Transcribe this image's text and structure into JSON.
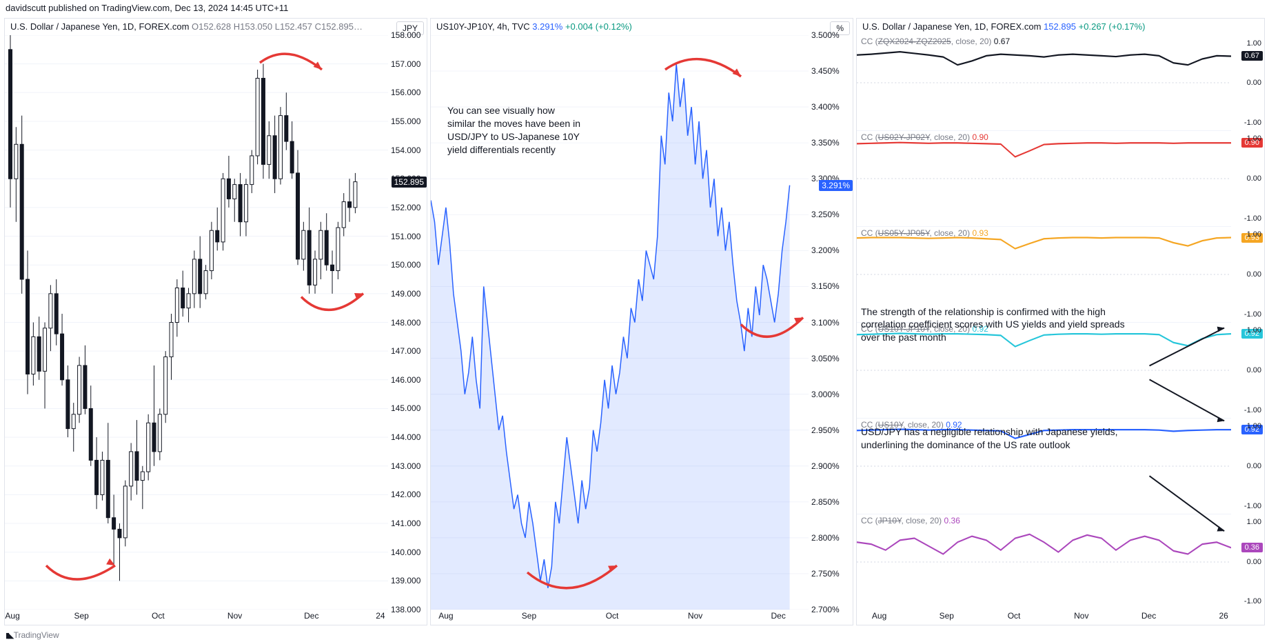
{
  "header": "davidscutt published on TradingView.com, Dec 13, 2024 14:45 UTC+11",
  "footer": "TradingView",
  "panel1": {
    "title_sym": "U.S. Dollar / Japanese Yen, 1D, FOREX.com",
    "ohlc": "O152.628 H153.050 L152.457 C152.895…",
    "unit": "JPY",
    "ylim": [
      138,
      158
    ],
    "ytick_step": 1,
    "xticks": [
      "Aug",
      "Sep",
      "Oct",
      "Nov",
      "Dec",
      "24"
    ],
    "xtick_pos": [
      0.02,
      0.2,
      0.4,
      0.6,
      0.8,
      0.98
    ],
    "price_tag": {
      "value": "152.895",
      "color": "#131722",
      "y": 152.895
    },
    "colors": {
      "up": "#131722",
      "down": "#131722",
      "wick": "#131722",
      "bg": "#ffffff",
      "grid": "#f0f3fa"
    },
    "candles": [
      {
        "x": 0.0,
        "o": 157.5,
        "h": 158.0,
        "l": 152.0,
        "c": 153.0
      },
      {
        "x": 0.015,
        "o": 153.0,
        "h": 154.8,
        "l": 151.5,
        "c": 154.2
      },
      {
        "x": 0.03,
        "o": 154.2,
        "h": 155.2,
        "l": 149.0,
        "c": 149.5
      },
      {
        "x": 0.045,
        "o": 149.5,
        "h": 150.5,
        "l": 145.5,
        "c": 146.2
      },
      {
        "x": 0.06,
        "o": 146.2,
        "h": 148.0,
        "l": 145.8,
        "c": 147.5
      },
      {
        "x": 0.075,
        "o": 147.5,
        "h": 148.2,
        "l": 146.0,
        "c": 146.3
      },
      {
        "x": 0.09,
        "o": 146.3,
        "h": 148.0,
        "l": 145.0,
        "c": 147.8
      },
      {
        "x": 0.105,
        "o": 147.8,
        "h": 149.3,
        "l": 147.0,
        "c": 149.0
      },
      {
        "x": 0.12,
        "o": 149.0,
        "h": 149.5,
        "l": 147.2,
        "c": 147.6
      },
      {
        "x": 0.135,
        "o": 147.6,
        "h": 148.3,
        "l": 145.8,
        "c": 146.0
      },
      {
        "x": 0.15,
        "o": 146.0,
        "h": 146.5,
        "l": 144.0,
        "c": 144.3
      },
      {
        "x": 0.165,
        "o": 144.3,
        "h": 145.2,
        "l": 143.5,
        "c": 144.8
      },
      {
        "x": 0.18,
        "o": 144.8,
        "h": 146.8,
        "l": 144.5,
        "c": 146.5
      },
      {
        "x": 0.195,
        "o": 146.5,
        "h": 147.2,
        "l": 144.8,
        "c": 145.0
      },
      {
        "x": 0.21,
        "o": 145.0,
        "h": 145.8,
        "l": 143.0,
        "c": 143.2
      },
      {
        "x": 0.225,
        "o": 143.2,
        "h": 144.0,
        "l": 141.5,
        "c": 142.0
      },
      {
        "x": 0.24,
        "o": 142.0,
        "h": 143.5,
        "l": 141.8,
        "c": 143.2
      },
      {
        "x": 0.255,
        "o": 143.2,
        "h": 144.5,
        "l": 141.0,
        "c": 141.2
      },
      {
        "x": 0.27,
        "o": 141.2,
        "h": 142.0,
        "l": 139.5,
        "c": 140.8
      },
      {
        "x": 0.285,
        "o": 140.8,
        "h": 141.0,
        "l": 139.0,
        "c": 140.5
      },
      {
        "x": 0.3,
        "o": 140.5,
        "h": 142.5,
        "l": 140.2,
        "c": 142.3
      },
      {
        "x": 0.315,
        "o": 142.3,
        "h": 143.8,
        "l": 141.8,
        "c": 143.5
      },
      {
        "x": 0.33,
        "o": 143.5,
        "h": 144.6,
        "l": 142.0,
        "c": 142.5
      },
      {
        "x": 0.345,
        "o": 142.5,
        "h": 143.0,
        "l": 141.5,
        "c": 142.8
      },
      {
        "x": 0.36,
        "o": 142.8,
        "h": 144.8,
        "l": 142.5,
        "c": 144.5
      },
      {
        "x": 0.375,
        "o": 144.5,
        "h": 146.5,
        "l": 143.0,
        "c": 143.5
      },
      {
        "x": 0.39,
        "o": 143.5,
        "h": 145.0,
        "l": 143.2,
        "c": 144.8
      },
      {
        "x": 0.405,
        "o": 144.8,
        "h": 147.0,
        "l": 144.5,
        "c": 146.8
      },
      {
        "x": 0.42,
        "o": 146.8,
        "h": 148.3,
        "l": 146.0,
        "c": 148.0
      },
      {
        "x": 0.435,
        "o": 148.0,
        "h": 149.5,
        "l": 147.5,
        "c": 149.2
      },
      {
        "x": 0.45,
        "o": 149.2,
        "h": 149.8,
        "l": 148.2,
        "c": 148.5
      },
      {
        "x": 0.465,
        "o": 148.5,
        "h": 149.2,
        "l": 148.0,
        "c": 149.0
      },
      {
        "x": 0.48,
        "o": 149.0,
        "h": 150.5,
        "l": 148.5,
        "c": 150.2
      },
      {
        "x": 0.495,
        "o": 150.2,
        "h": 151.0,
        "l": 148.5,
        "c": 149.0
      },
      {
        "x": 0.51,
        "o": 149.0,
        "h": 150.0,
        "l": 148.8,
        "c": 149.8
      },
      {
        "x": 0.525,
        "o": 149.8,
        "h": 151.5,
        "l": 149.5,
        "c": 151.2
      },
      {
        "x": 0.54,
        "o": 151.2,
        "h": 152.0,
        "l": 150.5,
        "c": 150.8
      },
      {
        "x": 0.555,
        "o": 150.8,
        "h": 153.2,
        "l": 150.5,
        "c": 153.0
      },
      {
        "x": 0.57,
        "o": 153.0,
        "h": 153.8,
        "l": 152.0,
        "c": 152.3
      },
      {
        "x": 0.585,
        "o": 152.3,
        "h": 153.0,
        "l": 151.5,
        "c": 152.8
      },
      {
        "x": 0.6,
        "o": 152.8,
        "h": 153.2,
        "l": 151.0,
        "c": 151.5
      },
      {
        "x": 0.615,
        "o": 151.5,
        "h": 153.0,
        "l": 151.0,
        "c": 152.8
      },
      {
        "x": 0.63,
        "o": 152.8,
        "h": 154.0,
        "l": 152.5,
        "c": 153.8
      },
      {
        "x": 0.645,
        "o": 153.8,
        "h": 156.8,
        "l": 153.5,
        "c": 156.5
      },
      {
        "x": 0.66,
        "o": 156.5,
        "h": 157.0,
        "l": 153.0,
        "c": 153.5
      },
      {
        "x": 0.675,
        "o": 153.5,
        "h": 155.0,
        "l": 153.0,
        "c": 154.5
      },
      {
        "x": 0.69,
        "o": 154.5,
        "h": 155.2,
        "l": 152.5,
        "c": 153.0
      },
      {
        "x": 0.705,
        "o": 153.0,
        "h": 155.5,
        "l": 152.8,
        "c": 155.2
      },
      {
        "x": 0.72,
        "o": 155.2,
        "h": 156.0,
        "l": 154.0,
        "c": 154.3
      },
      {
        "x": 0.735,
        "o": 154.3,
        "h": 155.0,
        "l": 153.0,
        "c": 153.2
      },
      {
        "x": 0.75,
        "o": 153.2,
        "h": 154.0,
        "l": 150.0,
        "c": 150.2
      },
      {
        "x": 0.765,
        "o": 150.2,
        "h": 151.5,
        "l": 149.8,
        "c": 151.2
      },
      {
        "x": 0.78,
        "o": 151.2,
        "h": 152.0,
        "l": 149.0,
        "c": 149.3
      },
      {
        "x": 0.795,
        "o": 149.3,
        "h": 150.5,
        "l": 149.0,
        "c": 150.2
      },
      {
        "x": 0.81,
        "o": 150.2,
        "h": 151.5,
        "l": 149.5,
        "c": 151.2
      },
      {
        "x": 0.825,
        "o": 151.2,
        "h": 151.8,
        "l": 149.8,
        "c": 150.0
      },
      {
        "x": 0.84,
        "o": 150.0,
        "h": 150.5,
        "l": 149.0,
        "c": 149.8
      },
      {
        "x": 0.855,
        "o": 149.8,
        "h": 151.5,
        "l": 149.5,
        "c": 151.3
      },
      {
        "x": 0.87,
        "o": 151.3,
        "h": 152.5,
        "l": 151.0,
        "c": 152.2
      },
      {
        "x": 0.885,
        "o": 152.2,
        "h": 153.0,
        "l": 151.5,
        "c": 152.0
      },
      {
        "x": 0.9,
        "o": 152.0,
        "h": 153.2,
        "l": 151.8,
        "c": 152.895
      }
    ]
  },
  "panel2": {
    "title_sym": "US10Y-JP10Y, 4h, TVC",
    "quote": "3.291%",
    "change": "+0.004 (+0.12%)",
    "unit": "%",
    "annotation": "You can see visually how similar the moves have been in USD/JPY to US-Japanese 10Y yield differentials recently",
    "ylim": [
      2.7,
      3.5
    ],
    "ytick_step": 0.05,
    "xticks": [
      "Aug",
      "Sep",
      "Oct",
      "Nov",
      "Dec"
    ],
    "xtick_pos": [
      0.04,
      0.26,
      0.48,
      0.7,
      0.92
    ],
    "price_tag": {
      "value": "3.291%",
      "color": "#2962ff",
      "y": 3.291
    },
    "line_color": "#2962ff",
    "fill_color": "#2962ff22",
    "series": [
      [
        0.0,
        3.27
      ],
      [
        0.01,
        3.24
      ],
      [
        0.02,
        3.18
      ],
      [
        0.03,
        3.22
      ],
      [
        0.04,
        3.26
      ],
      [
        0.05,
        3.21
      ],
      [
        0.06,
        3.14
      ],
      [
        0.07,
        3.1
      ],
      [
        0.08,
        3.06
      ],
      [
        0.09,
        3.0
      ],
      [
        0.1,
        3.03
      ],
      [
        0.11,
        3.08
      ],
      [
        0.12,
        3.02
      ],
      [
        0.13,
        2.98
      ],
      [
        0.14,
        3.15
      ],
      [
        0.15,
        3.1
      ],
      [
        0.16,
        3.05
      ],
      [
        0.17,
        3.0
      ],
      [
        0.18,
        2.95
      ],
      [
        0.19,
        2.97
      ],
      [
        0.2,
        2.92
      ],
      [
        0.21,
        2.88
      ],
      [
        0.22,
        2.84
      ],
      [
        0.23,
        2.86
      ],
      [
        0.24,
        2.82
      ],
      [
        0.25,
        2.8
      ],
      [
        0.26,
        2.85
      ],
      [
        0.27,
        2.82
      ],
      [
        0.28,
        2.78
      ],
      [
        0.29,
        2.74
      ],
      [
        0.3,
        2.77
      ],
      [
        0.31,
        2.73
      ],
      [
        0.32,
        2.76
      ],
      [
        0.33,
        2.85
      ],
      [
        0.34,
        2.82
      ],
      [
        0.35,
        2.88
      ],
      [
        0.36,
        2.94
      ],
      [
        0.37,
        2.9
      ],
      [
        0.38,
        2.86
      ],
      [
        0.39,
        2.82
      ],
      [
        0.4,
        2.88
      ],
      [
        0.41,
        2.84
      ],
      [
        0.42,
        2.87
      ],
      [
        0.43,
        2.95
      ],
      [
        0.44,
        2.92
      ],
      [
        0.45,
        2.96
      ],
      [
        0.46,
        3.02
      ],
      [
        0.47,
        2.98
      ],
      [
        0.48,
        3.04
      ],
      [
        0.49,
        3.0
      ],
      [
        0.5,
        3.03
      ],
      [
        0.51,
        3.08
      ],
      [
        0.52,
        3.05
      ],
      [
        0.53,
        3.12
      ],
      [
        0.54,
        3.1
      ],
      [
        0.55,
        3.16
      ],
      [
        0.56,
        3.13
      ],
      [
        0.57,
        3.2
      ],
      [
        0.58,
        3.18
      ],
      [
        0.59,
        3.16
      ],
      [
        0.6,
        3.22
      ],
      [
        0.61,
        3.36
      ],
      [
        0.62,
        3.32
      ],
      [
        0.63,
        3.42
      ],
      [
        0.64,
        3.38
      ],
      [
        0.65,
        3.46
      ],
      [
        0.66,
        3.4
      ],
      [
        0.67,
        3.44
      ],
      [
        0.68,
        3.36
      ],
      [
        0.69,
        3.4
      ],
      [
        0.7,
        3.32
      ],
      [
        0.71,
        3.38
      ],
      [
        0.72,
        3.3
      ],
      [
        0.73,
        3.34
      ],
      [
        0.74,
        3.26
      ],
      [
        0.75,
        3.3
      ],
      [
        0.76,
        3.22
      ],
      [
        0.77,
        3.26
      ],
      [
        0.78,
        3.2
      ],
      [
        0.79,
        3.24
      ],
      [
        0.8,
        3.18
      ],
      [
        0.81,
        3.13
      ],
      [
        0.82,
        3.1
      ],
      [
        0.83,
        3.06
      ],
      [
        0.84,
        3.12
      ],
      [
        0.85,
        3.08
      ],
      [
        0.86,
        3.15
      ],
      [
        0.87,
        3.11
      ],
      [
        0.88,
        3.18
      ],
      [
        0.89,
        3.16
      ],
      [
        0.9,
        3.13
      ],
      [
        0.91,
        3.1
      ],
      [
        0.92,
        3.14
      ],
      [
        0.93,
        3.2
      ],
      [
        0.94,
        3.24
      ],
      [
        0.95,
        3.291
      ]
    ]
  },
  "panel3": {
    "title_sym": "U.S. Dollar / Japanese Yen, 1D, FOREX.com",
    "quote": "152.895",
    "change": "+0.267 (+0.17%)",
    "xticks": [
      "Aug",
      "Sep",
      "Oct",
      "Nov",
      "Dec",
      "26"
    ],
    "xtick_pos": [
      0.06,
      0.24,
      0.42,
      0.6,
      0.78,
      0.98
    ],
    "annot1": "The strength of the relationship is confirmed with the high correlation coefficient scores with US yields and yield spreads over the past month",
    "annot2": "USD/JPY has a negligible relationship with Japanese yields, underlining the dominance of the US rate outlook",
    "rows": [
      {
        "label": "CC (ZQX2024-ZQZ2025, close, 20)",
        "val": "0.67",
        "color": "#131722",
        "series": [
          0.7,
          0.72,
          0.75,
          0.78,
          0.74,
          0.7,
          0.65,
          0.45,
          0.55,
          0.68,
          0.72,
          0.7,
          0.68,
          0.65,
          0.7,
          0.72,
          0.7,
          0.68,
          0.66,
          0.7,
          0.72,
          0.68,
          0.5,
          0.45,
          0.6,
          0.68,
          0.67
        ]
      },
      {
        "label": "CC (US02Y-JP02Y, close, 20)",
        "val": "0.90",
        "color": "#e53935",
        "series": [
          0.88,
          0.89,
          0.9,
          0.91,
          0.9,
          0.89,
          0.9,
          0.9,
          0.89,
          0.88,
          0.87,
          0.55,
          0.7,
          0.86,
          0.88,
          0.89,
          0.9,
          0.9,
          0.89,
          0.9,
          0.9,
          0.9,
          0.89,
          0.9,
          0.9,
          0.9,
          0.9
        ]
      },
      {
        "label": "CC (US05Y-JP05Y, close, 20)",
        "val": "0.93",
        "color": "#f5a623",
        "series": [
          0.92,
          0.93,
          0.93,
          0.93,
          0.92,
          0.91,
          0.92,
          0.93,
          0.92,
          0.9,
          0.88,
          0.65,
          0.78,
          0.9,
          0.92,
          0.93,
          0.93,
          0.92,
          0.93,
          0.93,
          0.93,
          0.92,
          0.8,
          0.72,
          0.85,
          0.92,
          0.93
        ]
      },
      {
        "label": "CC (US10Y-JP10Y, close, 20)",
        "val": "0.92",
        "color": "#26c6da",
        "series": [
          0.9,
          0.91,
          0.92,
          0.93,
          0.92,
          0.91,
          0.92,
          0.92,
          0.91,
          0.9,
          0.88,
          0.6,
          0.75,
          0.89,
          0.91,
          0.92,
          0.92,
          0.91,
          0.92,
          0.92,
          0.92,
          0.9,
          0.7,
          0.62,
          0.8,
          0.9,
          0.92
        ]
      },
      {
        "label": "CC (US10Y, close, 20)",
        "val": "0.92",
        "color": "#2962ff",
        "series": [
          0.9,
          0.91,
          0.92,
          0.93,
          0.92,
          0.91,
          0.92,
          0.92,
          0.91,
          0.9,
          0.89,
          0.7,
          0.8,
          0.9,
          0.91,
          0.92,
          0.92,
          0.92,
          0.92,
          0.92,
          0.92,
          0.91,
          0.88,
          0.9,
          0.91,
          0.92,
          0.92
        ]
      },
      {
        "label": "CC (JP10Y, close, 20)",
        "val": "0.36",
        "color": "#ab47bc",
        "series": [
          0.5,
          0.45,
          0.3,
          0.55,
          0.6,
          0.4,
          0.2,
          0.5,
          0.65,
          0.55,
          0.3,
          0.6,
          0.7,
          0.5,
          0.25,
          0.55,
          0.68,
          0.6,
          0.3,
          0.55,
          0.65,
          0.55,
          0.28,
          0.2,
          0.45,
          0.5,
          0.36
        ]
      }
    ],
    "row_ylim": [
      -1.2,
      1.2
    ],
    "row_yticks": [
      1.0,
      0.0,
      -1.0
    ]
  }
}
